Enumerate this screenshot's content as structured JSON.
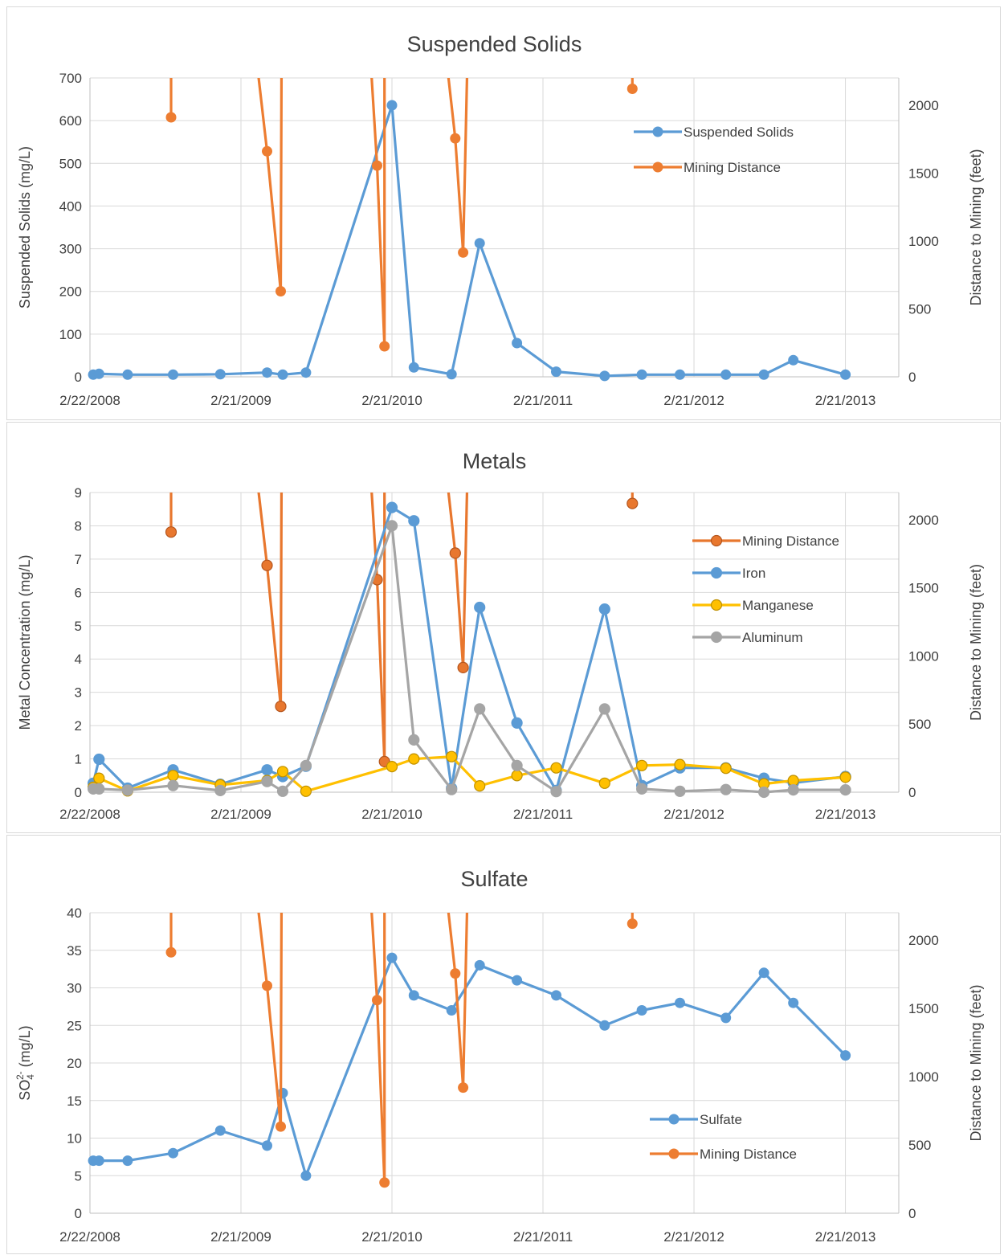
{
  "colors": {
    "mining": "#ED7D31",
    "mining_metals": "#E8772E",
    "suspended": "#5B9BD5",
    "iron": "#5B9BD5",
    "manganese": "#FFC000",
    "aluminum": "#A5A5A5",
    "sulfate": "#5B9BD5",
    "grid": "#d9d9d9"
  },
  "chart_data": [
    {
      "type": "line",
      "title": "Suspended Solids",
      "ylabel": "Suspended Solids (mg/L)",
      "y2label": "Distance to Mining (feet)",
      "xlim": [
        "2008-02-22",
        "2013-06-30"
      ],
      "ylim": [
        0,
        700
      ],
      "y2lim": [
        0,
        2200
      ],
      "xticks": [
        "2/22/2008",
        "2/21/2009",
        "2/21/2010",
        "2/21/2011",
        "2/21/2012",
        "2/21/2013"
      ],
      "yticks": [
        0,
        100,
        200,
        300,
        400,
        500,
        600,
        700
      ],
      "y2ticks": [
        0,
        500,
        1000,
        1500,
        2000
      ],
      "legend_position": "top-right",
      "series": [
        {
          "name": "Suspended Solids",
          "axis": "left",
          "color_key": "suspended",
          "points": [
            [
              "2008-03-01",
              5
            ],
            [
              "2008-03-15",
              7
            ],
            [
              "2008-05-23",
              5
            ],
            [
              "2008-09-10",
              5
            ],
            [
              "2009-01-02",
              6
            ],
            [
              "2009-04-25",
              10
            ],
            [
              "2009-06-02",
              5
            ],
            [
              "2009-07-28",
              10
            ],
            [
              "2010-02-21",
              636
            ],
            [
              "2010-04-15",
              22
            ],
            [
              "2010-07-15",
              6
            ],
            [
              "2010-09-21",
              313
            ],
            [
              "2010-12-20",
              79
            ],
            [
              "2011-03-25",
              12
            ],
            [
              "2011-07-20",
              2
            ],
            [
              "2011-10-18",
              5
            ],
            [
              "2012-01-18",
              5
            ],
            [
              "2012-05-08",
              5
            ],
            [
              "2012-08-08",
              5
            ],
            [
              "2012-10-18",
              39
            ],
            [
              "2013-02-21",
              5
            ]
          ]
        },
        {
          "name": "Mining Distance",
          "axis": "right",
          "color_key": "mining",
          "points": [
            [
              "2008-09-05",
              1910
            ],
            [
              "2008-09-05",
              2300
            ],
            null,
            [
              "2009-04-01",
              2300
            ],
            [
              "2009-04-25",
              1660
            ],
            [
              "2009-05-28",
              630
            ],
            [
              "2009-05-30",
              2300
            ],
            null,
            [
              "2010-01-01",
              2300
            ],
            [
              "2010-01-16",
              1555
            ],
            [
              "2010-02-03",
              225
            ],
            [
              "2010-02-03",
              2300
            ],
            null,
            [
              "2010-07-04",
              2300
            ],
            [
              "2010-07-24",
              1755
            ],
            [
              "2010-08-12",
              915
            ],
            [
              "2010-08-22",
              2300
            ],
            null,
            [
              "2011-09-25",
              2120
            ],
            [
              "2011-09-25",
              2300
            ]
          ]
        }
      ]
    },
    {
      "type": "line",
      "title": "Metals",
      "ylabel": "Metal Concentration (mg/L)",
      "y2label": "Distance to Mining (feet)",
      "xlim": [
        "2008-02-22",
        "2013-06-30"
      ],
      "ylim": [
        0,
        9
      ],
      "y2lim": [
        0,
        2200
      ],
      "xticks": [
        "2/22/2008",
        "2/21/2009",
        "2/21/2010",
        "2/21/2011",
        "2/21/2012",
        "2/21/2013"
      ],
      "yticks": [
        0,
        1,
        2,
        3,
        4,
        5,
        6,
        7,
        8,
        9
      ],
      "y2ticks": [
        0,
        500,
        1000,
        1500,
        2000
      ],
      "legend_position": "right",
      "series": [
        {
          "name": "Mining Distance",
          "axis": "right",
          "color_key": "mining_metals",
          "points": [
            [
              "2008-09-05",
              1910
            ],
            [
              "2008-09-05",
              2300
            ],
            null,
            [
              "2009-04-01",
              2300
            ],
            [
              "2009-04-25",
              1665
            ],
            [
              "2009-05-28",
              630
            ],
            [
              "2009-05-30",
              2300
            ],
            null,
            [
              "2010-01-01",
              2300
            ],
            [
              "2010-01-16",
              1560
            ],
            [
              "2010-02-03",
              225
            ],
            [
              "2010-02-03",
              2300
            ],
            null,
            [
              "2010-07-04",
              2300
            ],
            [
              "2010-07-24",
              1755
            ],
            [
              "2010-08-12",
              915
            ],
            [
              "2010-08-22",
              2300
            ],
            null,
            [
              "2011-09-25",
              2120
            ],
            [
              "2011-09-25",
              2300
            ]
          ]
        },
        {
          "name": "Iron",
          "axis": "left",
          "color_key": "iron",
          "points": [
            [
              "2008-03-01",
              0.27
            ],
            [
              "2008-03-15",
              0.99
            ],
            [
              "2008-05-23",
              0.12
            ],
            [
              "2008-09-10",
              0.67
            ],
            [
              "2009-01-02",
              0.24
            ],
            [
              "2009-04-25",
              0.67
            ],
            [
              "2009-06-02",
              0.47
            ],
            [
              "2009-07-28",
              0.78
            ],
            [
              "2010-02-21",
              8.55
            ],
            [
              "2010-04-15",
              8.15
            ],
            [
              "2010-07-15",
              0.12
            ],
            [
              "2010-09-21",
              5.55
            ],
            [
              "2010-12-20",
              2.08
            ],
            [
              "2011-03-25",
              0.05
            ],
            [
              "2011-07-20",
              5.5
            ],
            [
              "2011-10-18",
              0.2
            ],
            [
              "2012-01-18",
              0.73
            ],
            [
              "2012-05-08",
              0.73
            ],
            [
              "2012-08-08",
              0.42
            ],
            [
              "2012-10-18",
              0.28
            ],
            [
              "2013-02-21",
              0.47
            ]
          ]
        },
        {
          "name": "Manganese",
          "axis": "left",
          "color_key": "manganese",
          "points": [
            [
              "2008-03-01",
              0.15
            ],
            [
              "2008-03-15",
              0.42
            ],
            [
              "2008-05-23",
              0.04
            ],
            [
              "2008-09-10",
              0.5
            ],
            [
              "2009-01-02",
              0.22
            ],
            [
              "2009-04-25",
              0.35
            ],
            [
              "2009-06-02",
              0.62
            ],
            [
              "2009-07-28",
              0.03
            ],
            [
              "2010-02-21",
              0.77
            ],
            [
              "2010-04-15",
              1.0
            ],
            [
              "2010-07-15",
              1.07
            ],
            [
              "2010-09-21",
              0.19
            ],
            [
              "2010-12-20",
              0.5
            ],
            [
              "2011-03-25",
              0.73
            ],
            [
              "2011-07-20",
              0.27
            ],
            [
              "2011-10-18",
              0.8
            ],
            [
              "2012-01-18",
              0.83
            ],
            [
              "2012-05-08",
              0.72
            ],
            [
              "2012-08-08",
              0.25
            ],
            [
              "2012-10-18",
              0.35
            ],
            [
              "2013-02-21",
              0.45
            ]
          ]
        },
        {
          "name": "Aluminum",
          "axis": "left",
          "color_key": "aluminum",
          "points": [
            [
              "2008-03-01",
              0.1
            ],
            [
              "2008-03-15",
              0.1
            ],
            [
              "2008-05-23",
              0.06
            ],
            [
              "2008-09-10",
              0.2
            ],
            [
              "2009-01-02",
              0.05
            ],
            [
              "2009-04-25",
              0.32
            ],
            [
              "2009-06-02",
              0.03
            ],
            [
              "2009-07-28",
              0.8
            ],
            [
              "2010-02-21",
              8.0
            ],
            [
              "2010-04-15",
              1.57
            ],
            [
              "2010-07-15",
              0.08
            ],
            [
              "2010-09-21",
              2.5
            ],
            [
              "2010-12-20",
              0.8
            ],
            [
              "2011-03-25",
              0.02
            ],
            [
              "2011-07-20",
              2.5
            ],
            [
              "2011-10-18",
              0.1
            ],
            [
              "2012-01-18",
              0.03
            ],
            [
              "2012-05-08",
              0.08
            ],
            [
              "2012-08-08",
              0.0
            ],
            [
              "2012-10-18",
              0.07
            ],
            [
              "2013-02-21",
              0.07
            ]
          ]
        }
      ]
    },
    {
      "type": "line",
      "title": "Sulfate",
      "ylabel_parts": [
        "SO",
        "4",
        "2-",
        " (mg/L)"
      ],
      "y2label": "Distance to Mining (feet)",
      "xlim": [
        "2008-02-22",
        "2013-06-30"
      ],
      "ylim": [
        0,
        40
      ],
      "y2lim": [
        0,
        2200
      ],
      "xticks": [
        "2/22/2008",
        "2/21/2009",
        "2/21/2010",
        "2/21/2011",
        "2/21/2012",
        "2/21/2013"
      ],
      "yticks": [
        0,
        5,
        10,
        15,
        20,
        25,
        30,
        35,
        40
      ],
      "y2ticks": [
        0,
        500,
        1000,
        1500,
        2000
      ],
      "legend_position": "lower-right",
      "series": [
        {
          "name": "Sulfate",
          "axis": "left",
          "color_key": "sulfate",
          "points": [
            [
              "2008-03-01",
              7
            ],
            [
              "2008-03-15",
              7
            ],
            [
              "2008-05-23",
              7
            ],
            [
              "2008-09-10",
              8
            ],
            [
              "2009-01-02",
              11
            ],
            [
              "2009-04-25",
              9
            ],
            [
              "2009-06-02",
              16
            ],
            [
              "2009-07-28",
              5
            ],
            [
              "2010-02-21",
              34
            ],
            [
              "2010-04-15",
              29
            ],
            [
              "2010-07-15",
              27
            ],
            [
              "2010-09-21",
              33
            ],
            [
              "2010-12-20",
              31
            ],
            [
              "2011-03-25",
              29
            ],
            [
              "2011-07-20",
              25
            ],
            [
              "2011-10-18",
              27
            ],
            [
              "2012-01-18",
              28
            ],
            [
              "2012-05-08",
              26
            ],
            [
              "2012-08-08",
              32
            ],
            [
              "2012-10-18",
              28
            ],
            [
              "2013-02-21",
              21
            ]
          ]
        },
        {
          "name": "Mining Distance",
          "axis": "right",
          "color_key": "mining",
          "points": [
            [
              "2008-09-05",
              1910
            ],
            [
              "2008-09-05",
              2300
            ],
            null,
            [
              "2009-04-01",
              2300
            ],
            [
              "2009-04-25",
              1665
            ],
            [
              "2009-05-28",
              635
            ],
            [
              "2009-05-30",
              2300
            ],
            null,
            [
              "2010-01-01",
              2300
            ],
            [
              "2010-01-16",
              1560
            ],
            [
              "2010-02-03",
              225
            ],
            [
              "2010-02-03",
              2300
            ],
            null,
            [
              "2010-07-04",
              2300
            ],
            [
              "2010-07-24",
              1755
            ],
            [
              "2010-08-12",
              920
            ],
            [
              "2010-08-22",
              2300
            ],
            null,
            [
              "2011-09-25",
              2120
            ],
            [
              "2011-09-25",
              2300
            ]
          ]
        }
      ]
    }
  ]
}
